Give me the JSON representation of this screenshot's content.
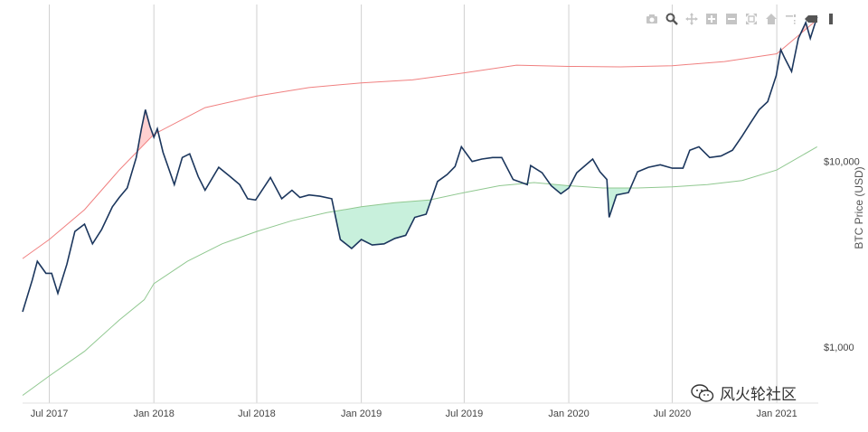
{
  "modebar": {
    "buttons": [
      "camera-icon",
      "zoom-icon",
      "pan-icon",
      "zoom-in-icon",
      "zoom-out-icon",
      "autoscale-icon",
      "reset-axes-icon",
      "spike-lines-icon",
      "hover-closest-icon",
      "hover-compare-icon"
    ]
  },
  "watermark": {
    "text": "风火轮社区"
  },
  "colors": {
    "price": "#1b365d",
    "upper_band": "#f08080",
    "lower_band": "#90c890",
    "upper_fill": "#ffd0d0",
    "lower_fill": "#c8f0dc",
    "grid": "#d0d0d0"
  },
  "chart_data": {
    "type": "line",
    "xlabel": "",
    "ylabel": "BTC Price (USD)",
    "y_scale": "log",
    "y_axis_side": "right",
    "ylim": [
      500,
      70000
    ],
    "xlim": [
      "2017-05-15",
      "2021-03-15"
    ],
    "x_ticks": [
      {
        "date": "2017-07-01",
        "label": "Jul 2017"
      },
      {
        "date": "2018-01-01",
        "label": "Jan 2018"
      },
      {
        "date": "2018-07-01",
        "label": "Jul 2018"
      },
      {
        "date": "2019-01-01",
        "label": "Jan 2019"
      },
      {
        "date": "2019-07-01",
        "label": "Jul 2019"
      },
      {
        "date": "2020-01-01",
        "label": "Jan 2020"
      },
      {
        "date": "2020-07-01",
        "label": "Jul 2020"
      },
      {
        "date": "2021-01-01",
        "label": "Jan 2021"
      }
    ],
    "y_ticks": [
      {
        "value": 1000,
        "label": "$1,000"
      },
      {
        "value": 10000,
        "label": "$10,000"
      }
    ],
    "grid": true,
    "legend": "none",
    "series": [
      {
        "x": [
          "2017-05-15",
          "2017-06-01",
          "2017-06-10",
          "2017-06-25",
          "2017-07-05",
          "2017-07-16",
          "2017-08-01",
          "2017-08-15",
          "2017-09-01",
          "2017-09-15",
          "2017-10-01",
          "2017-10-20",
          "2017-11-01",
          "2017-11-15",
          "2017-12-01",
          "2017-12-10",
          "2017-12-17",
          "2017-12-25",
          "2018-01-01",
          "2018-01-07",
          "2018-01-17",
          "2018-02-06",
          "2018-02-20",
          "2018-03-05",
          "2018-03-20",
          "2018-04-01",
          "2018-04-25",
          "2018-05-15",
          "2018-06-01",
          "2018-06-15",
          "2018-06-29",
          "2018-07-25",
          "2018-08-14",
          "2018-09-01",
          "2018-09-15",
          "2018-10-01",
          "2018-10-20",
          "2018-11-10",
          "2018-11-20",
          "2018-11-25",
          "2018-12-15",
          "2019-01-01",
          "2019-01-20",
          "2019-02-10",
          "2019-03-01",
          "2019-03-20",
          "2019-04-05",
          "2019-04-25",
          "2019-05-15",
          "2019-06-01",
          "2019-06-15",
          "2019-06-26",
          "2019-07-15",
          "2019-08-01",
          "2019-08-20",
          "2019-09-05",
          "2019-09-25",
          "2019-10-20",
          "2019-10-26",
          "2019-11-15",
          "2019-12-01",
          "2019-12-18",
          "2020-01-01",
          "2020-01-15",
          "2020-02-12",
          "2020-02-25",
          "2020-03-08",
          "2020-03-12",
          "2020-03-25",
          "2020-04-15",
          "2020-05-01",
          "2020-05-20",
          "2020-06-10",
          "2020-07-01",
          "2020-07-20",
          "2020-08-01",
          "2020-08-17",
          "2020-09-05",
          "2020-09-25",
          "2020-10-15",
          "2020-11-01",
          "2020-11-15",
          "2020-12-01",
          "2020-12-16",
          "2020-12-31",
          "2021-01-08",
          "2021-01-15",
          "2021-01-27",
          "2021-02-08",
          "2021-02-21",
          "2021-03-01",
          "2021-03-13"
        ],
        "y": [
          1550,
          2300,
          2900,
          2500,
          2500,
          1950,
          2800,
          4200,
          4600,
          3600,
          4300,
          5700,
          6400,
          7200,
          10500,
          15000,
          19000,
          15500,
          13500,
          15000,
          11200,
          7500,
          10500,
          11000,
          8300,
          7000,
          9300,
          8300,
          7500,
          6300,
          6200,
          8200,
          6300,
          7000,
          6400,
          6600,
          6500,
          6300,
          4500,
          3800,
          3400,
          3800,
          3550,
          3600,
          3850,
          4000,
          5000,
          5200,
          7800,
          8500,
          9400,
          12000,
          10000,
          10300,
          10500,
          10500,
          8000,
          7500,
          9500,
          8700,
          7400,
          6700,
          7200,
          8700,
          10300,
          8800,
          8000,
          5000,
          6600,
          6800,
          8800,
          9300,
          9600,
          9200,
          9200,
          11500,
          12000,
          10500,
          10700,
          11500,
          13700,
          16000,
          19000,
          21000,
          29000,
          40000,
          36000,
          30500,
          46000,
          56000,
          46000,
          60000
        ]
      },
      {
        "x": [
          "2017-05-15",
          "2017-07-01",
          "2017-09-01",
          "2017-11-01",
          "2018-01-01",
          "2018-04-01",
          "2018-07-01",
          "2018-10-01",
          "2019-01-01",
          "2019-04-01",
          "2019-07-01",
          "2019-10-01",
          "2020-01-01",
          "2020-04-01",
          "2020-07-01",
          "2020-10-01",
          "2021-01-01",
          "2021-03-13"
        ],
        "y": [
          3000,
          3800,
          5500,
          9000,
          14000,
          19500,
          22500,
          25000,
          26500,
          27500,
          30000,
          33000,
          32500,
          32300,
          32800,
          34500,
          38000,
          58000
        ]
      },
      {
        "x": [
          "2017-05-15",
          "2017-07-01",
          "2017-09-01",
          "2017-11-01",
          "2017-12-15",
          "2018-01-01",
          "2018-03-01",
          "2018-05-01",
          "2018-07-01",
          "2018-09-01",
          "2018-11-01",
          "2019-01-01",
          "2019-03-01",
          "2019-05-01",
          "2019-07-01",
          "2019-09-01",
          "2019-11-01",
          "2020-01-01",
          "2020-03-01",
          "2020-05-01",
          "2020-07-01",
          "2020-09-01",
          "2020-11-01",
          "2021-01-01",
          "2021-03-13"
        ],
        "y": [
          550,
          700,
          950,
          1400,
          1800,
          2200,
          2900,
          3600,
          4200,
          4800,
          5300,
          5700,
          6000,
          6200,
          6800,
          7400,
          7700,
          7400,
          7200,
          7200,
          7300,
          7500,
          7900,
          9000,
          12000
        ]
      }
    ]
  }
}
